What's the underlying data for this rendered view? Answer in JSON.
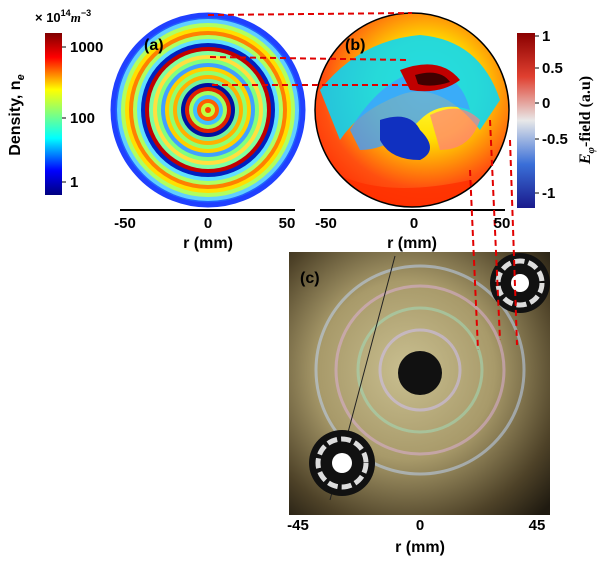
{
  "panel_a": {
    "label": "(a)",
    "colorbar": {
      "title": "Density, n",
      "title_sub": "e",
      "unit_prefix": "× 10",
      "unit_exp": "14",
      "unit": "m",
      "unit_unit_exp": "−3",
      "ticks": [
        1000,
        100,
        1
      ]
    },
    "xticks": [
      -50,
      0,
      50
    ],
    "xlabel": "r (mm)"
  },
  "panel_b": {
    "label": "(b)",
    "colorbar": {
      "title": "E",
      "title_sub": "φ",
      "title_rest": "-field (a.u)",
      "ticks": [
        1,
        0.5,
        0,
        -0.5,
        -1
      ]
    },
    "xticks": [
      -50,
      0,
      50
    ],
    "xlabel": "r (mm)"
  },
  "panel_c": {
    "label": "(c)",
    "xticks": [
      -45,
      0,
      45
    ],
    "xlabel": "r (mm)"
  }
}
